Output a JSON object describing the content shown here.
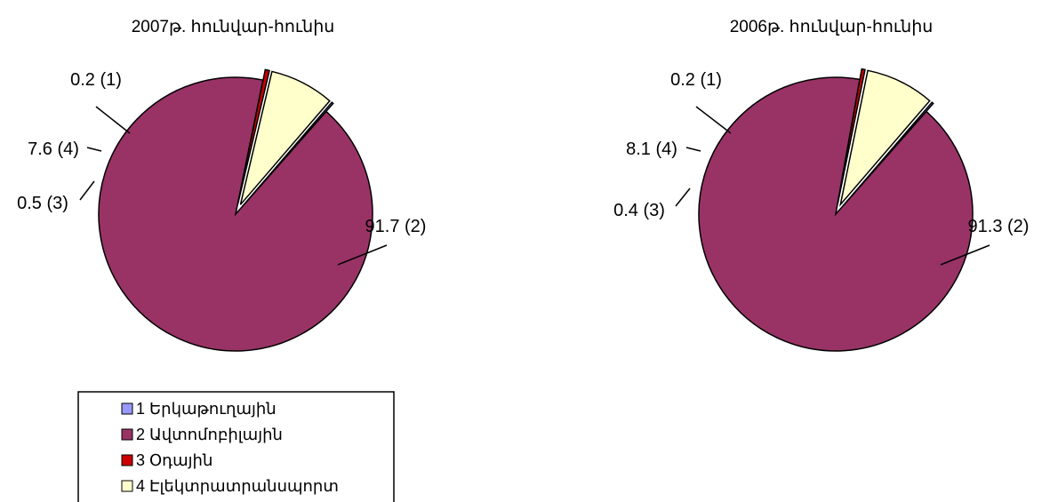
{
  "chart_data": [
    {
      "type": "pie",
      "title": "2007թ. հունվար-հունիս",
      "slices": [
        {
          "id": 1,
          "label": "0.2 (1)",
          "value": 0.2,
          "color": "#9999FF"
        },
        {
          "id": 2,
          "label": "91.7 (2)",
          "value": 91.7,
          "color": "#993366"
        },
        {
          "id": 3,
          "label": "0.5 (3)",
          "value": 0.5,
          "color": "#CC0000"
        },
        {
          "id": 4,
          "label": "7.6 (4)",
          "value": 7.6,
          "color": "#FFFFCC"
        }
      ]
    },
    {
      "type": "pie",
      "title": "2006թ. հունվար-հունիս",
      "slices": [
        {
          "id": 1,
          "label": "0.2 (1)",
          "value": 0.2,
          "color": "#9999FF"
        },
        {
          "id": 2,
          "label": "91.3 (2)",
          "value": 91.3,
          "color": "#993366"
        },
        {
          "id": 3,
          "label": "0.4 (3)",
          "value": 0.4,
          "color": "#CC0000"
        },
        {
          "id": 4,
          "label": "8.1 (4)",
          "value": 8.1,
          "color": "#FFFFCC"
        }
      ]
    }
  ],
  "legend": {
    "items": [
      {
        "label": "1 Երկաթուղային",
        "color": "#9999FF"
      },
      {
        "label": "2 Ավտոմոբիլային",
        "color": "#993366"
      },
      {
        "label": "3 Օդային",
        "color": "#CC0000"
      },
      {
        "label": "4 Էլեկտրատրանսպորտ",
        "color": "#FFFFCC"
      }
    ]
  }
}
